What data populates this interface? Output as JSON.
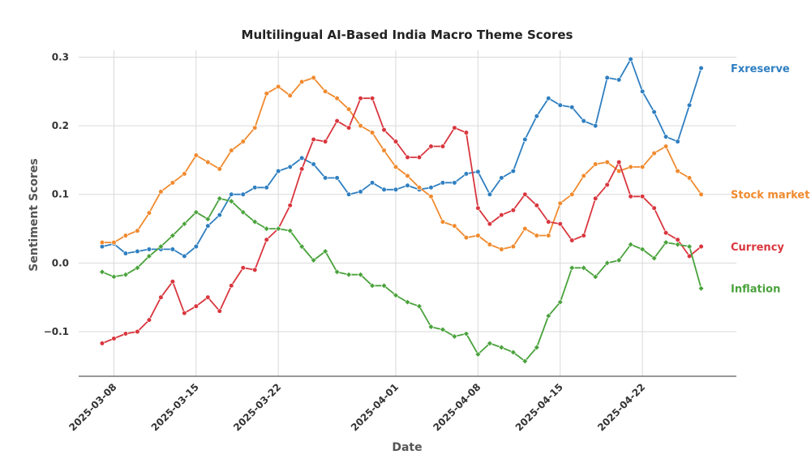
{
  "chart_data": {
    "type": "line",
    "title": "Multilingual AI-Based India Macro Theme Scores",
    "xlabel": "Date",
    "ylabel": "Sentiment Scores",
    "x_start": "2025-03-07",
    "x_end": "2025-04-28",
    "xlim": [
      "2025-03-05",
      "2025-04-30"
    ],
    "ylim": [
      -0.165,
      0.31
    ],
    "x_ticks": [
      "2025-03-08",
      "2025-03-15",
      "2025-03-22",
      "2025-04-01",
      "2025-04-08",
      "2025-04-15",
      "2025-04-22"
    ],
    "y_ticks": [
      -0.1,
      0.0,
      0.1,
      0.2,
      0.3
    ],
    "y_tick_labels": [
      "−0.1",
      "0.0",
      "0.1",
      "0.2",
      "0.3"
    ],
    "grid": true,
    "legend": "end-of-line labels",
    "series": [
      {
        "name": "Fxreserve",
        "color": "#2f7fc1",
        "marker": "circle",
        "values": [
          0.024,
          0.028,
          0.014,
          0.017,
          0.02,
          0.02,
          0.02,
          0.01,
          0.024,
          0.054,
          0.07,
          0.1,
          0.1,
          0.11,
          0.11,
          0.134,
          0.14,
          0.153,
          0.144,
          0.124,
          0.124,
          0.1,
          0.104,
          0.117,
          0.107,
          0.107,
          0.113,
          0.107,
          0.11,
          0.117,
          0.117,
          0.13,
          0.133,
          0.1,
          0.124,
          0.134,
          0.18,
          0.214,
          0.24,
          0.23,
          0.227,
          0.207,
          0.2,
          0.27,
          0.267,
          0.297,
          0.25,
          0.22,
          0.184,
          0.177,
          0.23,
          0.284
        ]
      },
      {
        "name": "Stock market",
        "color": "#f08a2e",
        "marker": "circle",
        "values": [
          0.03,
          0.03,
          0.04,
          0.047,
          0.073,
          0.104,
          0.117,
          0.13,
          0.157,
          0.147,
          0.137,
          0.164,
          0.177,
          0.197,
          0.247,
          0.257,
          0.244,
          0.264,
          0.27,
          0.25,
          0.24,
          0.224,
          0.2,
          0.19,
          0.164,
          0.14,
          0.127,
          0.11,
          0.097,
          0.06,
          0.054,
          0.037,
          0.04,
          0.027,
          0.02,
          0.024,
          0.05,
          0.04,
          0.04,
          0.087,
          0.1,
          0.127,
          0.144,
          0.147,
          0.134,
          0.14,
          0.14,
          0.16,
          0.17,
          0.134,
          0.124,
          0.1
        ]
      },
      {
        "name": "Currency",
        "color": "#d9363e",
        "marker": "circle",
        "values": [
          -0.117,
          -0.11,
          -0.103,
          -0.1,
          -0.083,
          -0.05,
          -0.027,
          -0.073,
          -0.063,
          -0.05,
          -0.07,
          -0.033,
          -0.007,
          -0.01,
          0.034,
          0.05,
          0.084,
          0.137,
          0.18,
          0.177,
          0.207,
          0.197,
          0.24,
          0.24,
          0.194,
          0.177,
          0.154,
          0.154,
          0.17,
          0.17,
          0.197,
          0.19,
          0.08,
          0.057,
          0.07,
          0.077,
          0.1,
          0.084,
          0.06,
          0.057,
          0.033,
          0.04,
          0.094,
          0.114,
          0.147,
          0.097,
          0.097,
          0.08,
          0.044,
          0.034,
          0.01,
          0.024
        ]
      },
      {
        "name": "Inflation",
        "color": "#4aa23c",
        "marker": "diamond",
        "values": [
          -0.013,
          -0.02,
          -0.017,
          -0.007,
          0.01,
          0.024,
          0.04,
          0.057,
          0.074,
          0.064,
          0.094,
          0.09,
          0.074,
          0.06,
          0.05,
          0.05,
          0.047,
          0.024,
          0.004,
          0.017,
          -0.013,
          -0.017,
          -0.017,
          -0.033,
          -0.033,
          -0.047,
          -0.057,
          -0.063,
          -0.093,
          -0.097,
          -0.107,
          -0.103,
          -0.133,
          -0.117,
          -0.123,
          -0.13,
          -0.143,
          -0.123,
          -0.077,
          -0.057,
          -0.007,
          -0.007,
          -0.02,
          0.0,
          0.004,
          0.027,
          0.02,
          0.007,
          0.03,
          0.027,
          0.024,
          -0.037
        ]
      }
    ]
  }
}
